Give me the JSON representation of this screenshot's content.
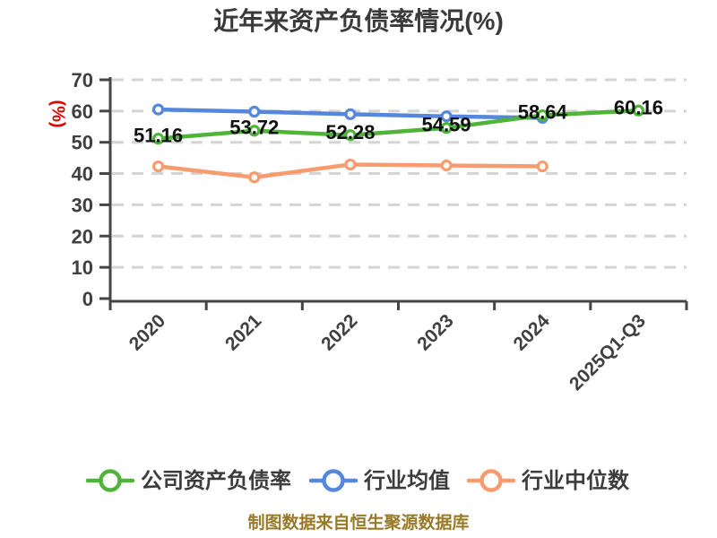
{
  "title": "近年来资产负债率情况(%)",
  "footer": "制图数据来自恒生聚源数据库",
  "colors": {
    "company_green": "#50b43a",
    "industry_avg_blue": "#5587dc",
    "industry_median_orange": "#f89b6f",
    "grid_gray": "#d4d4d4",
    "axis_gray": "#454545",
    "text_dark": "#404040",
    "ylabel_red": "#dd0000",
    "footer_gold": "#9a7a28",
    "marker_fill": "#ffffff"
  },
  "chart_data": {
    "type": "line",
    "title": "近年来资产负债率情况(%)",
    "ylabel": "(%)",
    "xlabel": "",
    "categories": [
      "2020",
      "2021",
      "2022",
      "2023",
      "2024",
      "2025Q1-Q3"
    ],
    "ylim": [
      0,
      70
    ],
    "yticks": [
      0,
      10,
      20,
      30,
      40,
      50,
      60,
      70
    ],
    "grid": "horizontal-dashed",
    "legend_position": "bottom",
    "x_tick_rotation_deg": 45,
    "series": [
      {
        "name": "公司资产负债率",
        "color": "#50b43a",
        "values": [
          51.16,
          53.72,
          52.28,
          54.59,
          58.64,
          60.16
        ],
        "point_labels": [
          "51.16",
          "53.72",
          "52.28",
          "54.59",
          "58.64",
          "60.16"
        ],
        "labels_shown": true
      },
      {
        "name": "行业均值",
        "color": "#5587dc",
        "values": [
          60.5,
          59.8,
          59.0,
          58.3,
          57.8,
          null
        ],
        "labels_shown": false
      },
      {
        "name": "行业中位数",
        "color": "#f89b6f",
        "values": [
          42.3,
          38.8,
          42.9,
          42.6,
          42.3,
          null
        ],
        "labels_shown": false
      }
    ]
  }
}
